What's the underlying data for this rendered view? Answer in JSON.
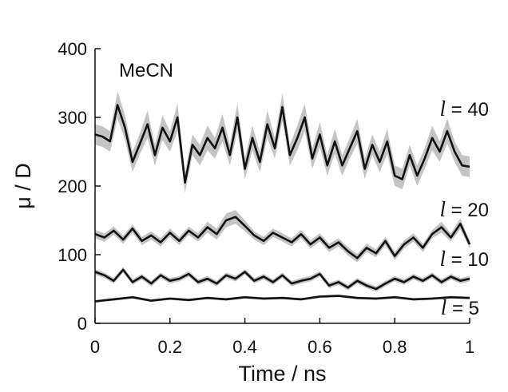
{
  "chart_data": {
    "type": "line",
    "xlabel": "Time / ns",
    "ylabel": "μ / D",
    "xlim": [
      0,
      1
    ],
    "ylim": [
      0,
      400
    ],
    "x_ticks": [
      "0",
      "0.2",
      "0.4",
      "0.6",
      "0.8",
      "1"
    ],
    "y_ticks": [
      "0",
      "100",
      "200",
      "300",
      "400"
    ],
    "annotation": "MeCN",
    "grid": false,
    "legend": "none",
    "colors": {
      "mean": "#111111",
      "band": "#c4c4c4"
    },
    "series": [
      {
        "name": "l = 40",
        "label_prefix": "l",
        "label_suffix": " = 40",
        "x": [
          0,
          0.02,
          0.04,
          0.06,
          0.08,
          0.1,
          0.12,
          0.14,
          0.16,
          0.18,
          0.2,
          0.22,
          0.24,
          0.26,
          0.28,
          0.3,
          0.32,
          0.34,
          0.36,
          0.38,
          0.4,
          0.42,
          0.44,
          0.46,
          0.48,
          0.5,
          0.52,
          0.54,
          0.56,
          0.58,
          0.6,
          0.62,
          0.64,
          0.66,
          0.68,
          0.7,
          0.72,
          0.74,
          0.76,
          0.78,
          0.8,
          0.82,
          0.84,
          0.86,
          0.88,
          0.9,
          0.92,
          0.94,
          0.96,
          0.98,
          1
        ],
        "y": [
          275,
          272,
          265,
          318,
          285,
          235,
          262,
          290,
          245,
          285,
          265,
          300,
          205,
          260,
          245,
          270,
          255,
          285,
          245,
          300,
          225,
          270,
          235,
          290,
          255,
          315,
          245,
          270,
          300,
          240,
          275,
          230,
          265,
          230,
          255,
          280,
          225,
          260,
          235,
          265,
          215,
          210,
          245,
          215,
          240,
          270,
          250,
          280,
          250,
          230,
          228
        ],
        "band": [
          15,
          15,
          15,
          20,
          18,
          15,
          15,
          20,
          15,
          18,
          15,
          20,
          15,
          15,
          15,
          18,
          15,
          20,
          15,
          20,
          15,
          18,
          15,
          20,
          15,
          20,
          15,
          18,
          20,
          15,
          18,
          15,
          18,
          15,
          15,
          18,
          15,
          15,
          15,
          18,
          15,
          15,
          15,
          15,
          15,
          18,
          15,
          18,
          15,
          15,
          15
        ]
      },
      {
        "name": "l = 20",
        "label_prefix": "l",
        "label_suffix": " = 20",
        "x": [
          0,
          0.025,
          0.05,
          0.075,
          0.1,
          0.125,
          0.15,
          0.175,
          0.2,
          0.225,
          0.25,
          0.275,
          0.3,
          0.325,
          0.35,
          0.375,
          0.4,
          0.425,
          0.45,
          0.475,
          0.5,
          0.525,
          0.55,
          0.575,
          0.6,
          0.625,
          0.65,
          0.675,
          0.7,
          0.725,
          0.75,
          0.775,
          0.8,
          0.825,
          0.85,
          0.875,
          0.9,
          0.925,
          0.95,
          0.975,
          1
        ],
        "y": [
          130,
          125,
          135,
          122,
          138,
          120,
          128,
          118,
          132,
          120,
          135,
          125,
          140,
          130,
          150,
          155,
          142,
          128,
          120,
          132,
          125,
          118,
          130,
          115,
          125,
          110,
          118,
          105,
          95,
          110,
          102,
          120,
          98,
          115,
          125,
          110,
          130,
          140,
          125,
          145,
          115
        ],
        "band": [
          6,
          6,
          6,
          6,
          6,
          6,
          6,
          6,
          6,
          6,
          6,
          6,
          8,
          8,
          10,
          10,
          8,
          6,
          6,
          6,
          6,
          6,
          6,
          6,
          6,
          6,
          6,
          6,
          6,
          6,
          6,
          6,
          6,
          6,
          6,
          6,
          6,
          8,
          6,
          8,
          6
        ]
      },
      {
        "name": "l = 10",
        "label_prefix": "l",
        "label_suffix": " = 10",
        "x": [
          0,
          0.025,
          0.05,
          0.075,
          0.1,
          0.125,
          0.15,
          0.175,
          0.2,
          0.225,
          0.25,
          0.275,
          0.3,
          0.325,
          0.35,
          0.375,
          0.4,
          0.425,
          0.45,
          0.475,
          0.5,
          0.525,
          0.55,
          0.575,
          0.6,
          0.625,
          0.65,
          0.675,
          0.7,
          0.725,
          0.75,
          0.775,
          0.8,
          0.825,
          0.85,
          0.875,
          0.9,
          0.925,
          0.95,
          0.975,
          1
        ],
        "y": [
          75,
          70,
          62,
          78,
          60,
          68,
          58,
          70,
          62,
          65,
          72,
          60,
          65,
          58,
          70,
          65,
          75,
          62,
          68,
          60,
          70,
          58,
          62,
          65,
          72,
          55,
          60,
          52,
          62,
          55,
          50,
          58,
          65,
          60,
          68,
          62,
          70,
          60,
          68,
          62,
          65
        ],
        "band": [
          4,
          4,
          4,
          4,
          4,
          4,
          4,
          4,
          4,
          4,
          4,
          4,
          4,
          4,
          4,
          4,
          4,
          4,
          4,
          4,
          4,
          4,
          4,
          4,
          4,
          4,
          4,
          4,
          4,
          4,
          4,
          4,
          4,
          4,
          4,
          4,
          4,
          4,
          4,
          4,
          4
        ]
      },
      {
        "name": "l = 5",
        "label_prefix": "l",
        "label_suffix": " = 5",
        "x": [
          0,
          0.05,
          0.1,
          0.15,
          0.2,
          0.25,
          0.3,
          0.35,
          0.4,
          0.45,
          0.5,
          0.55,
          0.6,
          0.65,
          0.7,
          0.75,
          0.8,
          0.85,
          0.9,
          0.95,
          1
        ],
        "y": [
          32,
          35,
          38,
          33,
          36,
          34,
          37,
          35,
          38,
          36,
          37,
          35,
          39,
          40,
          37,
          36,
          38,
          35,
          36,
          38,
          37
        ],
        "band": [
          2,
          2,
          2,
          2,
          2,
          2,
          2,
          2,
          2,
          2,
          2,
          2,
          2,
          2,
          2,
          2,
          2,
          2,
          2,
          2,
          2
        ]
      }
    ]
  }
}
